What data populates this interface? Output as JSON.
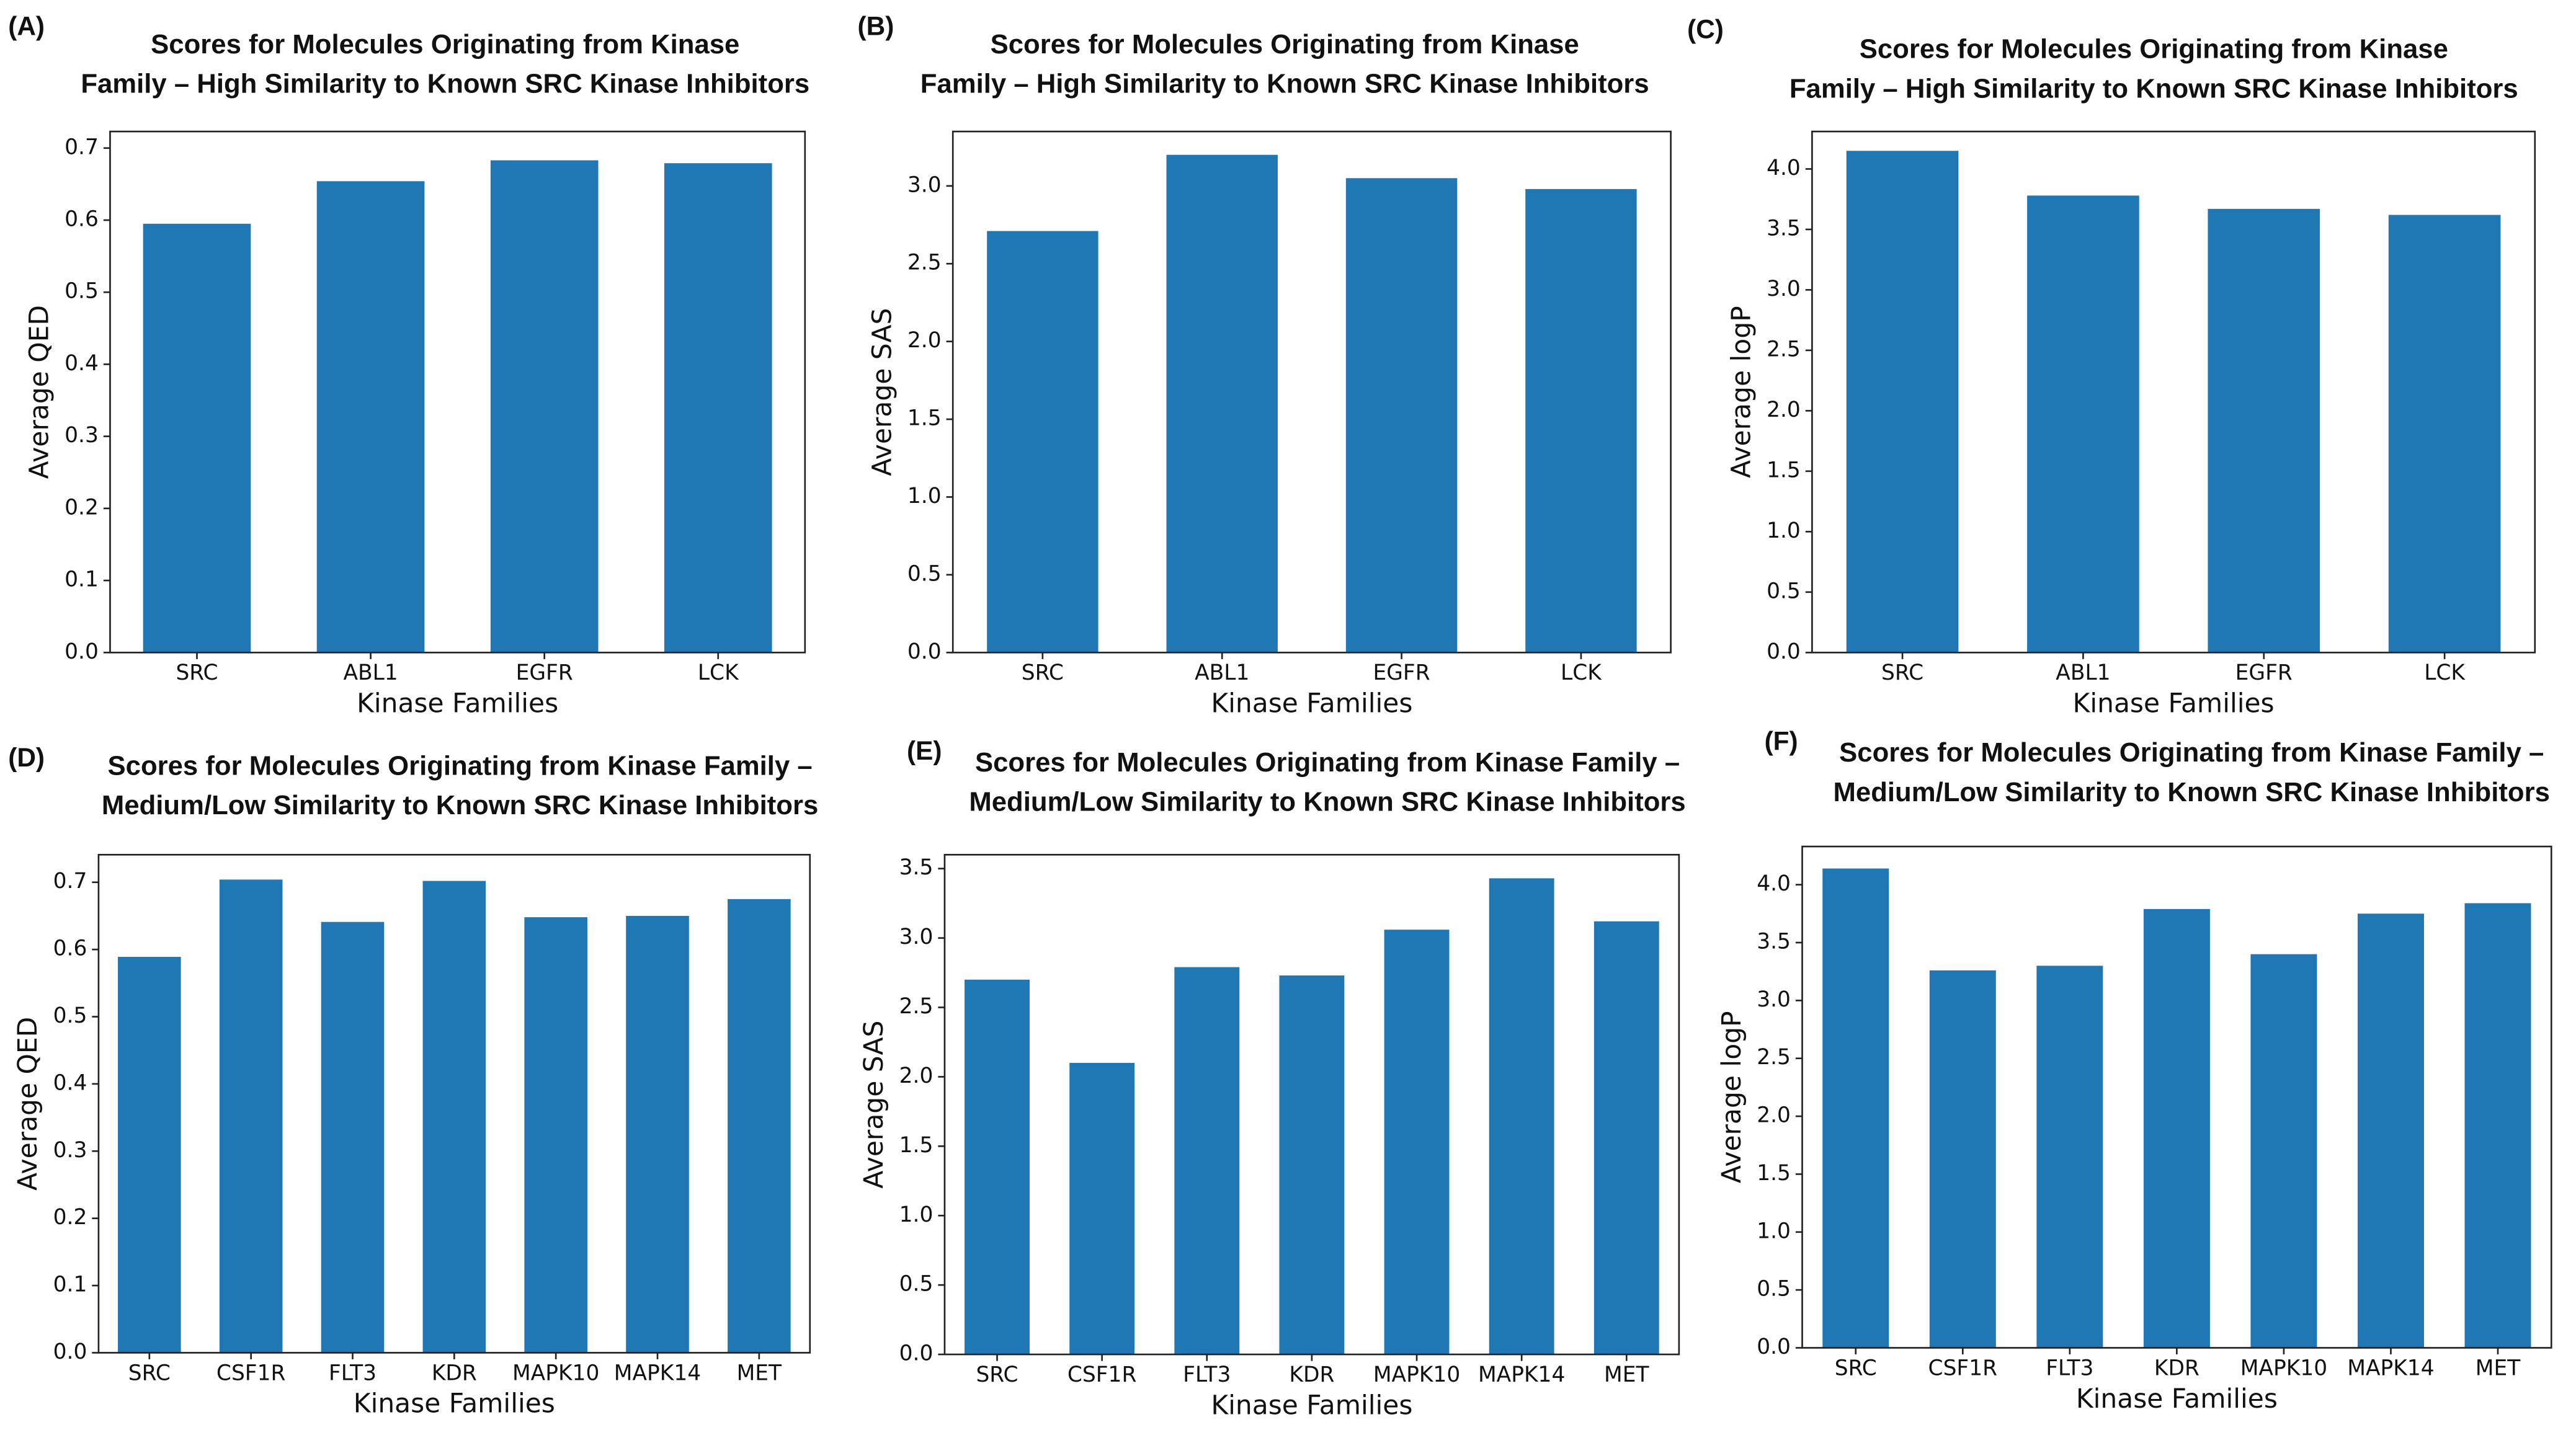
{
  "chart_data": [
    {
      "type": "bar",
      "panel_label": "(A)",
      "title": [
        "Scores for Molecules Originating from Kinase",
        "Family – High Similarity to Known SRC Kinase Inhibitors"
      ],
      "x_label": "Kinase Families",
      "y_label": "Average QED",
      "color": "#1f77b4",
      "categories": [
        "SRC",
        "ABL1",
        "EGFR",
        "LCK"
      ],
      "values": [
        0.595,
        0.654,
        0.683,
        0.679
      ],
      "ylim": [
        0,
        0.723
      ],
      "yticks": [
        {
          "value": 0,
          "label": "0.0"
        },
        0.1,
        0.2,
        0.3,
        0.4,
        0.5,
        0.6,
        0.7
      ]
    },
    {
      "type": "bar",
      "panel_label": "(B)",
      "title": [
        "Scores for Molecules Originating from Kinase",
        "Family – High Similarity to Known SRC Kinase Inhibitors"
      ],
      "x_label": "Kinase Families",
      "y_label": "Average SAS",
      "color": "#1f77b4",
      "categories": [
        "SRC",
        "ABL1",
        "EGFR",
        "LCK"
      ],
      "values": [
        2.71,
        3.2,
        3.05,
        2.98
      ],
      "ylim": [
        0,
        3.35
      ],
      "yticks": [
        {
          "value": 0,
          "label": "0.0"
        },
        0.5,
        {
          "value": 1,
          "label": "1.0"
        },
        1.5,
        {
          "value": 2,
          "label": "2.0"
        },
        2.5,
        {
          "value": 3,
          "label": "3.0"
        }
      ]
    },
    {
      "type": "bar",
      "panel_label": "(C)",
      "title": [
        "Scores for Molecules Originating from Kinase",
        "Family – High Similarity to Known SRC Kinase Inhibitors"
      ],
      "x_label": "Kinase Families",
      "y_label": "Average logP",
      "color": "#1f77b4",
      "categories": [
        "SRC",
        "ABL1",
        "EGFR",
        "LCK"
      ],
      "values": [
        4.15,
        3.78,
        3.67,
        3.62
      ],
      "ylim": [
        0,
        4.31
      ],
      "yticks": [
        {
          "value": 0,
          "label": "0.0"
        },
        0.5,
        {
          "value": 1,
          "label": "1.0"
        },
        1.5,
        {
          "value": 2,
          "label": "2.0"
        },
        2.5,
        {
          "value": 3,
          "label": "3.0"
        },
        3.5,
        {
          "value": 4,
          "label": "4.0"
        }
      ]
    },
    {
      "type": "bar",
      "panel_label": "(D)",
      "title": [
        "Scores for Molecules Originating from Kinase Family –",
        "Medium/Low Similarity to Known SRC Kinase Inhibitors"
      ],
      "x_label": "Kinase Families",
      "y_label": "Average QED",
      "color": "#1f77b4",
      "categories": [
        "SRC",
        "CSF1R",
        "FLT3",
        "KDR",
        "MAPK10",
        "MAPK14",
        "MET"
      ],
      "values": [
        0.589,
        0.704,
        0.641,
        0.702,
        0.648,
        0.65,
        0.675
      ],
      "ylim": [
        0,
        0.741
      ],
      "yticks": [
        {
          "value": 0,
          "label": "0.0"
        },
        0.1,
        0.2,
        0.3,
        0.4,
        0.5,
        0.6,
        0.7
      ]
    },
    {
      "type": "bar",
      "panel_label": "(E)",
      "title": [
        "Scores for Molecules Originating from Kinase Family –",
        "Medium/Low Similarity to Known SRC Kinase Inhibitors"
      ],
      "x_label": "Kinase Families",
      "y_label": "Average SAS",
      "color": "#1f77b4",
      "categories": [
        "SRC",
        "CSF1R",
        "FLT3",
        "KDR",
        "MAPK10",
        "MAPK14",
        "MET"
      ],
      "values": [
        2.7,
        2.1,
        2.79,
        2.73,
        3.06,
        3.43,
        3.12
      ],
      "ylim": [
        0,
        3.6
      ],
      "yticks": [
        {
          "value": 0,
          "label": "0.0"
        },
        0.5,
        {
          "value": 1,
          "label": "1.0"
        },
        1.5,
        {
          "value": 2,
          "label": "2.0"
        },
        2.5,
        {
          "value": 3,
          "label": "3.0"
        },
        3.5
      ]
    },
    {
      "type": "bar",
      "panel_label": "(F)",
      "title": [
        "Scores for Molecules Originating from Kinase Family –",
        "Medium/Low Similarity to Known SRC Kinase Inhibitors"
      ],
      "x_label": "Kinase Families",
      "y_label": "Average logP",
      "color": "#1f77b4",
      "categories": [
        "SRC",
        "CSF1R",
        "FLT3",
        "KDR",
        "MAPK10",
        "MAPK14",
        "MET"
      ],
      "values": [
        4.14,
        3.26,
        3.3,
        3.79,
        3.4,
        3.75,
        3.84
      ],
      "ylim": [
        0,
        4.33
      ],
      "yticks": [
        {
          "value": 0,
          "label": "0.0"
        },
        0.5,
        {
          "value": 1,
          "label": "1.0"
        },
        1.5,
        {
          "value": 2,
          "label": "2.0"
        },
        2.5,
        {
          "value": 3,
          "label": "3.0"
        },
        3.5,
        {
          "value": 4,
          "label": "4.0"
        }
      ]
    }
  ]
}
